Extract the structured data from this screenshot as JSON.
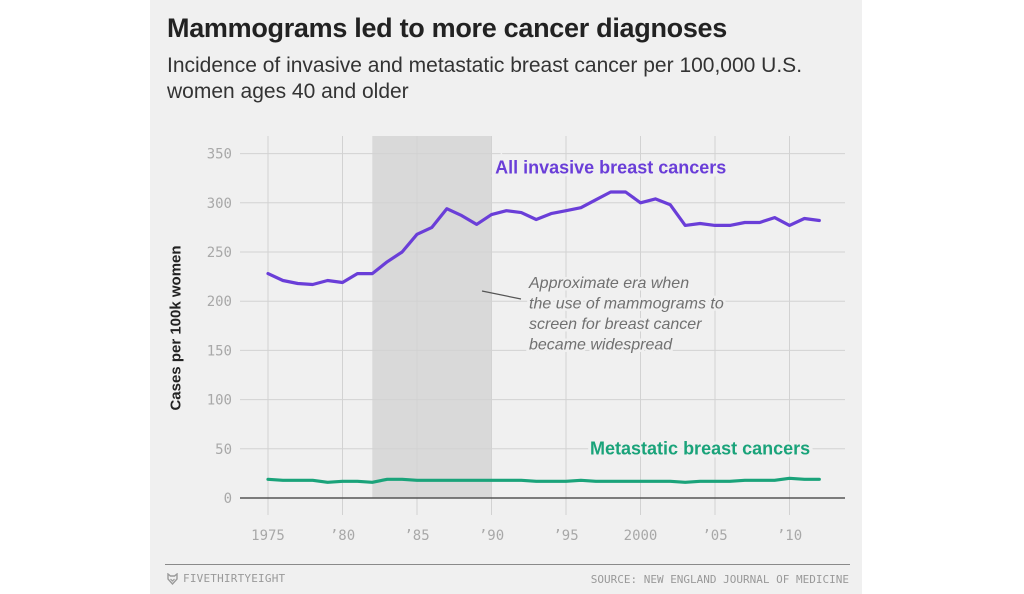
{
  "header": {
    "title": "Mammograms led to more cancer diagnoses",
    "subtitle": "Incidence of invasive and metastatic breast cancer per 100,000 U.S. women ages 40 and older"
  },
  "footer": {
    "brand": "FIVETHIRTYEIGHT",
    "brand_icon": "fox-logo-icon",
    "source": "SOURCE: NEW ENGLAND JOURNAL OF MEDICINE"
  },
  "colors": {
    "invasive": "#6a3ed8",
    "metastatic": "#1aa37a",
    "shade": "#d9d9d9",
    "grid": "#d2d2d2",
    "tick": "#a8a8a8",
    "annotation": "#707070"
  },
  "chart_data": {
    "type": "line",
    "title": "Mammograms led to more cancer diagnoses",
    "subtitle": "Incidence of invasive and metastatic breast cancer per 100,000 U.S. women ages 40 and older",
    "xlabel": "",
    "ylabel": "Cases per 100k women",
    "xlim": [
      1972.5,
      2014.5
    ],
    "ylim": [
      0,
      350
    ],
    "grid": true,
    "x_ticks": [
      1975,
      1980,
      1985,
      1990,
      1995,
      2000,
      2005,
      2010
    ],
    "x_tick_labels": [
      "1975",
      "’80",
      "’85",
      "’90",
      "’95",
      "2000",
      "’05",
      "’10"
    ],
    "y_ticks": [
      0,
      50,
      100,
      150,
      200,
      250,
      300,
      350
    ],
    "y_tick_labels": [
      "0",
      "50",
      "100",
      "150",
      "200",
      "250",
      "300",
      "350"
    ],
    "x": [
      1975,
      1976,
      1977,
      1978,
      1979,
      1980,
      1981,
      1982,
      1983,
      1984,
      1985,
      1986,
      1987,
      1988,
      1989,
      1990,
      1991,
      1992,
      1993,
      1994,
      1995,
      1996,
      1997,
      1998,
      1999,
      2000,
      2001,
      2002,
      2003,
      2004,
      2005,
      2006,
      2007,
      2008,
      2009,
      2010,
      2011,
      2012
    ],
    "series": [
      {
        "name": "All invasive breast cancers",
        "color": "#6a3ed8",
        "values": [
          228,
          221,
          218,
          217,
          221,
          219,
          228,
          228,
          240,
          250,
          268,
          275,
          294,
          287,
          278,
          288,
          292,
          290,
          283,
          289,
          292,
          295,
          303,
          311,
          311,
          300,
          304,
          298,
          277,
          279,
          277,
          277,
          280,
          280,
          285,
          277,
          284,
          282
        ]
      },
      {
        "name": "Metastatic breast cancers",
        "color": "#1aa37a",
        "values": [
          19,
          18,
          18,
          18,
          16,
          17,
          17,
          16,
          19,
          19,
          18,
          18,
          18,
          18,
          18,
          18,
          18,
          18,
          17,
          17,
          17,
          18,
          17,
          17,
          17,
          17,
          17,
          17,
          16,
          17,
          17,
          17,
          18,
          18,
          18,
          20,
          19,
          19
        ]
      }
    ],
    "shaded_region": {
      "x_start": 1982,
      "x_end": 1990
    },
    "annotations": [
      {
        "text": "Approximate era when the use of mammograms to screen for breast cancer became widespread",
        "lines": [
          "Approximate era when",
          "the use of mammograms to",
          "screen for breast cancer",
          "became widespread"
        ],
        "points_to": "shaded_region"
      }
    ],
    "series_labels": [
      {
        "series": 0,
        "text": "All invasive breast cancers",
        "anchor_x": 1998,
        "anchor_y": 330
      },
      {
        "series": 1,
        "text": "Metastatic breast cancers",
        "anchor_x": 2004,
        "anchor_y": 44
      }
    ]
  }
}
